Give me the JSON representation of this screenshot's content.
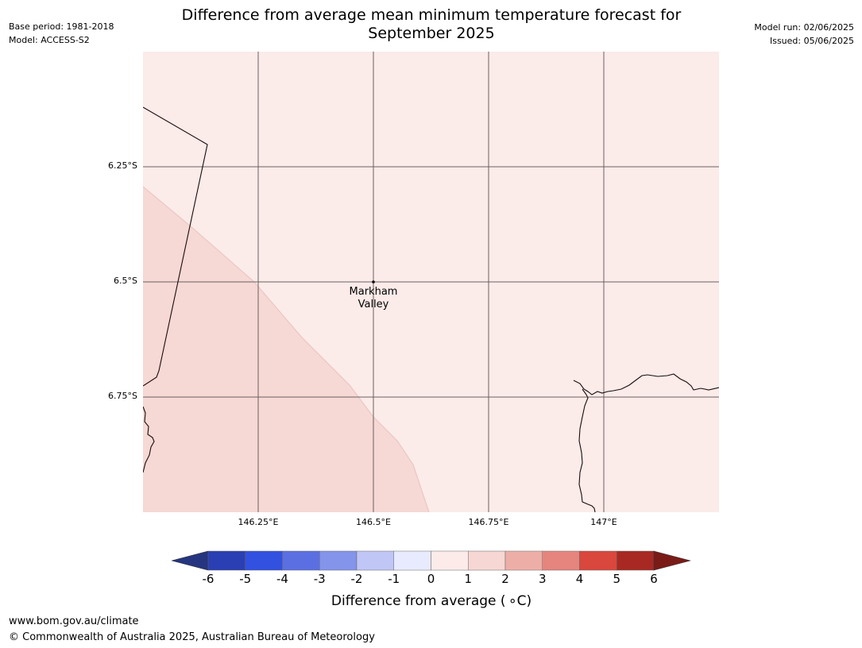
{
  "header": {
    "base_period": "Base period: 1981-2018",
    "model": "Model: ACCESS-S2",
    "title_line1": "Difference from average mean minimum temperature forecast for",
    "title_line2": "September 2025",
    "model_run": "Model run: 02/06/2025",
    "issued": "Issued: 05/06/2025"
  },
  "map": {
    "y_ticks": [
      "6.25°S",
      "6.5°S",
      "6.75°S"
    ],
    "x_ticks": [
      "146.25°E",
      "146.5°E",
      "146.75°E",
      "147°E"
    ],
    "place_label_line1": "Markham",
    "place_label_line2": "Valley",
    "colors": {
      "region_0_to_1": "#fbebe9",
      "region_1_to_2": "#f6d8d5",
      "gridline": "#6b6060",
      "coastline": "#1a0b0b"
    }
  },
  "colorbar": {
    "ticks": [
      "-6",
      "-5",
      "-4",
      "-3",
      "-2",
      "-1",
      "0",
      "1",
      "2",
      "3",
      "4",
      "5",
      "6"
    ],
    "colors": [
      "#25357f",
      "#2a3fb3",
      "#3251e0",
      "#5b6fe3",
      "#8494ea",
      "#c0c6f5",
      "#e8ebfd",
      "#fcebe9",
      "#f6d7d3",
      "#eeaea8",
      "#e6847e",
      "#d9473d",
      "#a82923",
      "#7a1b18"
    ],
    "label": "Difference from average ( ∘C)"
  },
  "footer": {
    "url": "www.bom.gov.au/climate",
    "copyright": "© Commonwealth of Australia 2025, Australian Bureau of Meteorology"
  }
}
